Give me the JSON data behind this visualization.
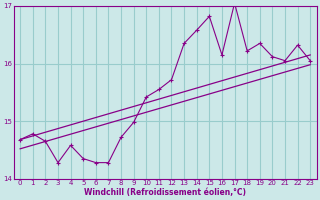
{
  "xlabel": "Windchill (Refroidissement éolien,°C)",
  "bg_color": "#cce8e8",
  "line_color": "#880088",
  "grid_color": "#99cccc",
  "spine_color": "#880088",
  "xlim": [
    -0.5,
    23.5
  ],
  "ylim": [
    14.0,
    17.0
  ],
  "yticks": [
    14,
    15,
    16,
    17
  ],
  "xticks": [
    0,
    1,
    2,
    3,
    4,
    5,
    6,
    7,
    8,
    9,
    10,
    11,
    12,
    13,
    14,
    15,
    16,
    17,
    18,
    19,
    20,
    21,
    22,
    23
  ],
  "data_x": [
    0,
    1,
    2,
    3,
    4,
    5,
    6,
    7,
    8,
    9,
    10,
    11,
    12,
    13,
    14,
    15,
    16,
    17,
    18,
    19,
    20,
    21,
    22,
    23
  ],
  "data_y": [
    14.68,
    14.78,
    14.65,
    14.28,
    14.58,
    14.35,
    14.28,
    14.28,
    14.72,
    14.98,
    15.42,
    15.55,
    15.72,
    16.35,
    16.58,
    16.82,
    16.15,
    17.05,
    16.22,
    16.35,
    16.12,
    16.05,
    16.32,
    16.05
  ],
  "trend1_x": [
    0,
    23
  ],
  "trend1_y": [
    14.68,
    16.15
  ],
  "trend2_x": [
    0,
    23
  ],
  "trend2_y": [
    14.52,
    15.98
  ]
}
